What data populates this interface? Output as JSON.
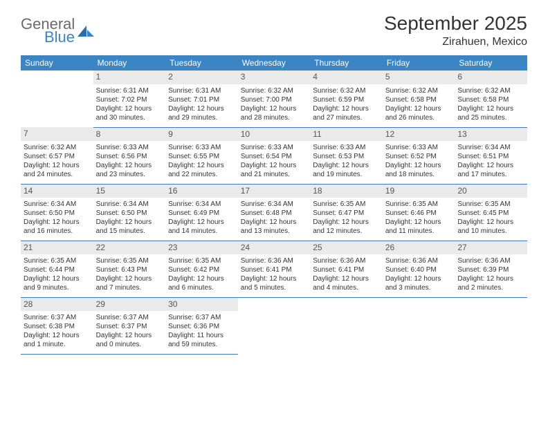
{
  "logo": {
    "general": "General",
    "blue": "Blue"
  },
  "title": "September 2025",
  "location": "Zirahuen, Mexico",
  "colors": {
    "header_bg": "#3b85c4",
    "header_text": "#ffffff",
    "daynum_bg": "#eaeaea",
    "border": "#3b7abf",
    "text": "#333333"
  },
  "weekdays": [
    "Sunday",
    "Monday",
    "Tuesday",
    "Wednesday",
    "Thursday",
    "Friday",
    "Saturday"
  ],
  "weeks": [
    [
      null,
      {
        "n": "1",
        "sunrise": "Sunrise: 6:31 AM",
        "sunset": "Sunset: 7:02 PM",
        "dayl": "Daylight: 12 hours and 30 minutes."
      },
      {
        "n": "2",
        "sunrise": "Sunrise: 6:31 AM",
        "sunset": "Sunset: 7:01 PM",
        "dayl": "Daylight: 12 hours and 29 minutes."
      },
      {
        "n": "3",
        "sunrise": "Sunrise: 6:32 AM",
        "sunset": "Sunset: 7:00 PM",
        "dayl": "Daylight: 12 hours and 28 minutes."
      },
      {
        "n": "4",
        "sunrise": "Sunrise: 6:32 AM",
        "sunset": "Sunset: 6:59 PM",
        "dayl": "Daylight: 12 hours and 27 minutes."
      },
      {
        "n": "5",
        "sunrise": "Sunrise: 6:32 AM",
        "sunset": "Sunset: 6:58 PM",
        "dayl": "Daylight: 12 hours and 26 minutes."
      },
      {
        "n": "6",
        "sunrise": "Sunrise: 6:32 AM",
        "sunset": "Sunset: 6:58 PM",
        "dayl": "Daylight: 12 hours and 25 minutes."
      }
    ],
    [
      {
        "n": "7",
        "sunrise": "Sunrise: 6:32 AM",
        "sunset": "Sunset: 6:57 PM",
        "dayl": "Daylight: 12 hours and 24 minutes."
      },
      {
        "n": "8",
        "sunrise": "Sunrise: 6:33 AM",
        "sunset": "Sunset: 6:56 PM",
        "dayl": "Daylight: 12 hours and 23 minutes."
      },
      {
        "n": "9",
        "sunrise": "Sunrise: 6:33 AM",
        "sunset": "Sunset: 6:55 PM",
        "dayl": "Daylight: 12 hours and 22 minutes."
      },
      {
        "n": "10",
        "sunrise": "Sunrise: 6:33 AM",
        "sunset": "Sunset: 6:54 PM",
        "dayl": "Daylight: 12 hours and 21 minutes."
      },
      {
        "n": "11",
        "sunrise": "Sunrise: 6:33 AM",
        "sunset": "Sunset: 6:53 PM",
        "dayl": "Daylight: 12 hours and 19 minutes."
      },
      {
        "n": "12",
        "sunrise": "Sunrise: 6:33 AM",
        "sunset": "Sunset: 6:52 PM",
        "dayl": "Daylight: 12 hours and 18 minutes."
      },
      {
        "n": "13",
        "sunrise": "Sunrise: 6:34 AM",
        "sunset": "Sunset: 6:51 PM",
        "dayl": "Daylight: 12 hours and 17 minutes."
      }
    ],
    [
      {
        "n": "14",
        "sunrise": "Sunrise: 6:34 AM",
        "sunset": "Sunset: 6:50 PM",
        "dayl": "Daylight: 12 hours and 16 minutes."
      },
      {
        "n": "15",
        "sunrise": "Sunrise: 6:34 AM",
        "sunset": "Sunset: 6:50 PM",
        "dayl": "Daylight: 12 hours and 15 minutes."
      },
      {
        "n": "16",
        "sunrise": "Sunrise: 6:34 AM",
        "sunset": "Sunset: 6:49 PM",
        "dayl": "Daylight: 12 hours and 14 minutes."
      },
      {
        "n": "17",
        "sunrise": "Sunrise: 6:34 AM",
        "sunset": "Sunset: 6:48 PM",
        "dayl": "Daylight: 12 hours and 13 minutes."
      },
      {
        "n": "18",
        "sunrise": "Sunrise: 6:35 AM",
        "sunset": "Sunset: 6:47 PM",
        "dayl": "Daylight: 12 hours and 12 minutes."
      },
      {
        "n": "19",
        "sunrise": "Sunrise: 6:35 AM",
        "sunset": "Sunset: 6:46 PM",
        "dayl": "Daylight: 12 hours and 11 minutes."
      },
      {
        "n": "20",
        "sunrise": "Sunrise: 6:35 AM",
        "sunset": "Sunset: 6:45 PM",
        "dayl": "Daylight: 12 hours and 10 minutes."
      }
    ],
    [
      {
        "n": "21",
        "sunrise": "Sunrise: 6:35 AM",
        "sunset": "Sunset: 6:44 PM",
        "dayl": "Daylight: 12 hours and 9 minutes."
      },
      {
        "n": "22",
        "sunrise": "Sunrise: 6:35 AM",
        "sunset": "Sunset: 6:43 PM",
        "dayl": "Daylight: 12 hours and 7 minutes."
      },
      {
        "n": "23",
        "sunrise": "Sunrise: 6:35 AM",
        "sunset": "Sunset: 6:42 PM",
        "dayl": "Daylight: 12 hours and 6 minutes."
      },
      {
        "n": "24",
        "sunrise": "Sunrise: 6:36 AM",
        "sunset": "Sunset: 6:41 PM",
        "dayl": "Daylight: 12 hours and 5 minutes."
      },
      {
        "n": "25",
        "sunrise": "Sunrise: 6:36 AM",
        "sunset": "Sunset: 6:41 PM",
        "dayl": "Daylight: 12 hours and 4 minutes."
      },
      {
        "n": "26",
        "sunrise": "Sunrise: 6:36 AM",
        "sunset": "Sunset: 6:40 PM",
        "dayl": "Daylight: 12 hours and 3 minutes."
      },
      {
        "n": "27",
        "sunrise": "Sunrise: 6:36 AM",
        "sunset": "Sunset: 6:39 PM",
        "dayl": "Daylight: 12 hours and 2 minutes."
      }
    ],
    [
      {
        "n": "28",
        "sunrise": "Sunrise: 6:37 AM",
        "sunset": "Sunset: 6:38 PM",
        "dayl": "Daylight: 12 hours and 1 minute."
      },
      {
        "n": "29",
        "sunrise": "Sunrise: 6:37 AM",
        "sunset": "Sunset: 6:37 PM",
        "dayl": "Daylight: 12 hours and 0 minutes."
      },
      {
        "n": "30",
        "sunrise": "Sunrise: 6:37 AM",
        "sunset": "Sunset: 6:36 PM",
        "dayl": "Daylight: 11 hours and 59 minutes."
      },
      null,
      null,
      null,
      null
    ]
  ]
}
